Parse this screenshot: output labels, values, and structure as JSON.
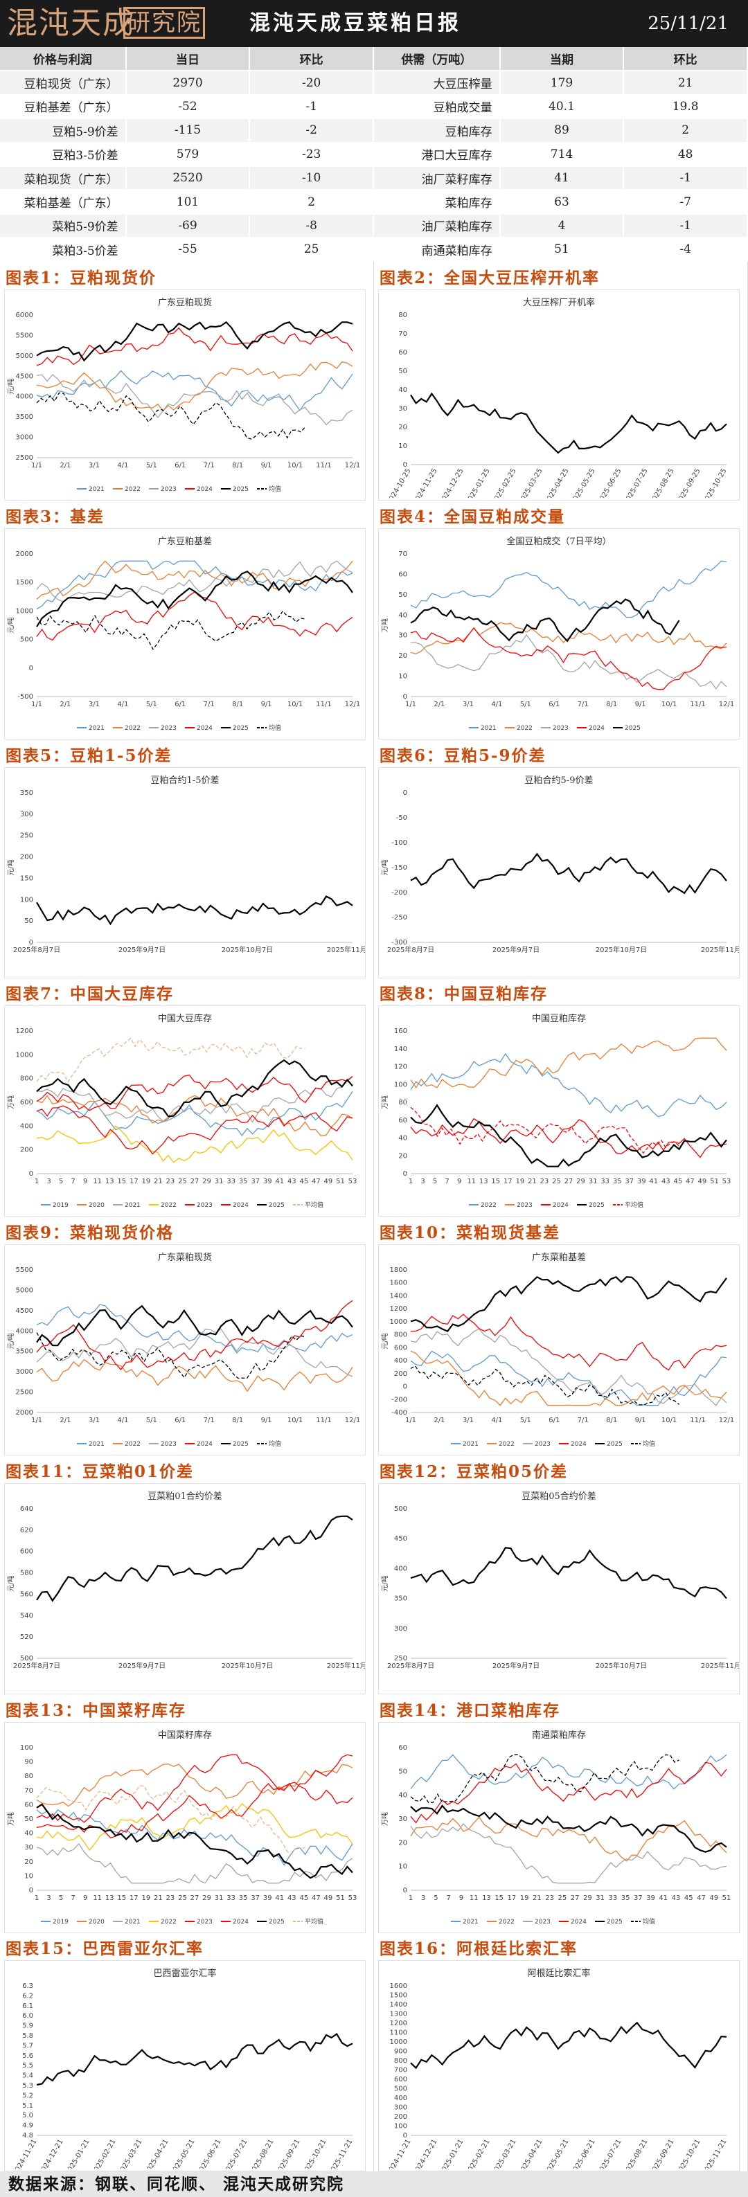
{
  "header": {
    "logo_text": "混沌天成",
    "logo_box_text": "研究院",
    "title": "混沌天成豆菜粕日报",
    "date": "25/11/21"
  },
  "price_table": {
    "headers": [
      "价格与利润",
      "当日",
      "环比"
    ],
    "rows": [
      [
        "豆粕现货（广东）",
        "2970",
        "-20"
      ],
      [
        "豆粕基差（广东）",
        "-52",
        "-1"
      ],
      [
        "豆粕5-9价差",
        "-115",
        "-2"
      ],
      [
        "豆粕3-5价差",
        "579",
        "-23"
      ],
      [
        "菜粕现货（广东）",
        "2520",
        "-10"
      ],
      [
        "菜粕基差（广东）",
        "101",
        "2"
      ],
      [
        "菜粕5-9价差",
        "-69",
        "-8"
      ],
      [
        "菜粕3-5价差",
        "-55",
        "25"
      ]
    ]
  },
  "supply_table": {
    "headers": [
      "供需（万吨）",
      "当期",
      "环比"
    ],
    "rows": [
      [
        "大豆压榨量",
        "179",
        "21"
      ],
      [
        "豆粕成交量",
        "40.1",
        "19.8"
      ],
      [
        "豆粕库存",
        "89",
        "2"
      ],
      [
        "港口大豆库存",
        "714",
        "48"
      ],
      [
        "油厂菜籽库存",
        "41",
        "-1"
      ],
      [
        "菜粕库存",
        "63",
        "-7"
      ],
      [
        "油厂菜粕库存",
        "4",
        "-1"
      ],
      [
        "南通菜粕库存",
        "51",
        "-4"
      ]
    ]
  },
  "charts": [
    {
      "label": "图表1：豆粕现货价",
      "title": "广东豆粕现货",
      "ylabel": "元/吨",
      "y_ticks": [
        "2500",
        "3000",
        "3500",
        "4000",
        "4500",
        "5000",
        "5500",
        "6000"
      ],
      "x_ticks": [
        "1/1",
        "2/1",
        "3/1",
        "4/1",
        "5/1",
        "6/1",
        "7/1",
        "8/1",
        "9/1",
        "10/1",
        "11/1",
        "12/1"
      ],
      "legend": [
        "2021",
        "2022",
        "2023",
        "2024",
        "2025",
        "均值"
      ]
    },
    {
      "label": "图表2：全国大豆压榨开机率",
      "title": "大豆压榨厂开机率",
      "ylabel": "",
      "y_ticks": [
        "0",
        "10",
        "20",
        "30",
        "40",
        "50",
        "60",
        "70",
        "80"
      ],
      "x_ticks": [
        "2024-10-25",
        "2024-11-25",
        "2024-12-25",
        "2025-01-25",
        "2025-02-25",
        "2025-03-25",
        "2025-04-25",
        "2025-05-25",
        "2025-06-25",
        "2025-07-25",
        "2025-08-25",
        "2025-09-25",
        "2025-10-25"
      ],
      "legend": []
    },
    {
      "label": "图表3：基差",
      "title": "广东豆粕基差",
      "ylabel": "元/吨",
      "y_ticks": [
        "-500",
        "0",
        "500",
        "1000",
        "1500",
        "2000"
      ],
      "x_ticks": [
        "1/1",
        "2/1",
        "3/1",
        "4/1",
        "5/1",
        "6/1",
        "7/1",
        "8/1",
        "9/1",
        "10/1",
        "11/1",
        "12/1"
      ],
      "legend": [
        "2021",
        "2022",
        "2023",
        "2024",
        "2025",
        "均值"
      ]
    },
    {
      "label": "图表4：全国豆粕成交量",
      "title": "全国豆粕成交（7日平均）",
      "ylabel": "万吨",
      "y_ticks": [
        "0",
        "10",
        "20",
        "30",
        "40",
        "50",
        "60",
        "70"
      ],
      "x_ticks": [
        "1/1",
        "2/1",
        "3/1",
        "4/1",
        "5/1",
        "6/1",
        "7/1",
        "8/1",
        "9/1",
        "10/1",
        "11/1",
        "12/1"
      ],
      "legend": [
        "2021",
        "2022",
        "2023",
        "2024",
        "2025"
      ]
    },
    {
      "label": "图表5：豆粕1-5价差",
      "title": "豆粕合约1-5价差",
      "ylabel": "元/吨",
      "y_ticks": [
        "0",
        "50",
        "100",
        "150",
        "200",
        "250",
        "300",
        "350"
      ],
      "x_ticks": [
        "2025年8月7日",
        "2025年9月7日",
        "2025年10月7日",
        "2025年11月7日"
      ],
      "legend": []
    },
    {
      "label": "图表6：豆粕5-9价差",
      "title": "豆粕合约5-9价差",
      "ylabel": "元/吨",
      "y_ticks": [
        "-300",
        "-250",
        "-200",
        "-150",
        "-100",
        "-50",
        "0"
      ],
      "x_ticks": [
        "2025年8月7日",
        "2025年9月7日",
        "2025年10月7日",
        "2025年11月7日"
      ],
      "legend": []
    },
    {
      "label": "图表7：中国大豆库存",
      "title": "中国大豆库存",
      "ylabel": "万吨",
      "y_ticks": [
        "0",
        "200",
        "400",
        "600",
        "800",
        "1000",
        "1200"
      ],
      "x_ticks": [
        "1",
        "3",
        "5",
        "7",
        "9",
        "11",
        "13",
        "15",
        "17",
        "19",
        "21",
        "23",
        "25",
        "27",
        "29",
        "31",
        "33",
        "35",
        "37",
        "39",
        "41",
        "43",
        "45",
        "47",
        "49",
        "51",
        "53"
      ],
      "legend": [
        "2019",
        "2020",
        "2021",
        "2022",
        "2023",
        "2024",
        "2025",
        "平均值"
      ]
    },
    {
      "label": "图表8：中国豆粕库存",
      "title": "中国豆粕库存",
      "ylabel": "万吨",
      "y_ticks": [
        "0",
        "20",
        "40",
        "60",
        "80",
        "100",
        "120",
        "140",
        "160"
      ],
      "x_ticks": [
        "1",
        "3",
        "5",
        "7",
        "9",
        "11",
        "13",
        "15",
        "17",
        "19",
        "21",
        "23",
        "25",
        "27",
        "29",
        "31",
        "33",
        "35",
        "37",
        "39",
        "41",
        "43",
        "45",
        "47",
        "49",
        "51",
        "53"
      ],
      "legend": [
        "2022",
        "2023",
        "2024",
        "2025",
        "平均值"
      ]
    },
    {
      "label": "图表9：菜粕现货价格",
      "title": "广东菜粕现货",
      "ylabel": "元/吨",
      "y_ticks": [
        "2000",
        "2500",
        "3000",
        "3500",
        "4000",
        "4500",
        "5000",
        "5500"
      ],
      "x_ticks": [
        "1/1",
        "2/1",
        "3/1",
        "4/1",
        "5/1",
        "6/1",
        "7/1",
        "8/1",
        "9/1",
        "10/1",
        "11/1",
        "12/1"
      ],
      "legend": [
        "2021",
        "2022",
        "2023",
        "2024",
        "2025",
        "均值"
      ]
    },
    {
      "label": "图表10：菜粕现货基差",
      "title": "广东菜粕基差",
      "ylabel": "元/吨",
      "y_ticks": [
        "-400",
        "-200",
        "0",
        "200",
        "400",
        "600",
        "800",
        "1000",
        "1200",
        "1400",
        "1600",
        "1800"
      ],
      "x_ticks": [
        "1/1",
        "2/1",
        "3/1",
        "4/1",
        "5/1",
        "6/1",
        "7/1",
        "8/1",
        "9/1",
        "10/1",
        "11/1",
        "12/1"
      ],
      "legend": [
        "2021",
        "2022",
        "2023",
        "2024",
        "2025",
        "均值"
      ]
    },
    {
      "label": "图表11：豆菜粕01价差",
      "title": "豆菜粕01合约价差",
      "ylabel": "元/吨",
      "y_ticks": [
        "500",
        "520",
        "540",
        "560",
        "580",
        "600",
        "620",
        "640"
      ],
      "x_ticks": [
        "2025年8月7日",
        "2025年9月7日",
        "2025年10月7日",
        "2025年11月7日"
      ],
      "legend": []
    },
    {
      "label": "图表12：豆菜粕05价差",
      "title": "豆菜粕05合约价差",
      "ylabel": "元/吨",
      "y_ticks": [
        "250",
        "300",
        "350",
        "400",
        "450",
        "500"
      ],
      "x_ticks": [
        "2025年8月7日",
        "2025年9月7日",
        "2025年10月7日",
        "2025年11月7日"
      ],
      "legend": []
    },
    {
      "label": "图表13：中国菜籽库存",
      "title": "中国菜籽库存",
      "ylabel": "万吨",
      "y_ticks": [
        "0",
        "10",
        "20",
        "30",
        "40",
        "50",
        "60",
        "70",
        "80",
        "90",
        "100"
      ],
      "x_ticks": [
        "1",
        "3",
        "5",
        "7",
        "9",
        "11",
        "13",
        "15",
        "17",
        "19",
        "21",
        "23",
        "25",
        "27",
        "29",
        "31",
        "33",
        "35",
        "37",
        "39",
        "41",
        "43",
        "45",
        "47",
        "49",
        "51",
        "53"
      ],
      "legend": [
        "2019",
        "2020",
        "2021",
        "2022",
        "2023",
        "2024",
        "2025",
        "平均值"
      ]
    },
    {
      "label": "图表14：港口菜粕库存",
      "title": "南通菜粕库存",
      "ylabel": "万吨",
      "y_ticks": [
        "0",
        "10",
        "20",
        "30",
        "40",
        "50",
        "60"
      ],
      "x_ticks": [
        "1",
        "3",
        "5",
        "7",
        "9",
        "11",
        "13",
        "15",
        "17",
        "19",
        "21",
        "23",
        "25",
        "27",
        "29",
        "31",
        "33",
        "35",
        "37",
        "39",
        "41",
        "43",
        "45",
        "47",
        "49",
        "51"
      ],
      "legend": [
        "2021",
        "2022",
        "2023",
        "2024",
        "2025",
        "均值"
      ]
    },
    {
      "label": "图表15：巴西雷亚尔汇率",
      "title": "巴西雷亚尔汇率",
      "ylabel": "",
      "y_ticks": [
        "4.8",
        "4.9",
        "5.0",
        "5.1",
        "5.2",
        "5.3",
        "5.4",
        "5.5",
        "5.6",
        "5.7",
        "5.8",
        "5.9",
        "6.0",
        "6.1",
        "6.2",
        "6.3"
      ],
      "x_ticks": [
        "2024-11-21",
        "2024-12-21",
        "2025-01-21",
        "2025-02-21",
        "2025-03-21",
        "2025-04-21",
        "2025-05-21",
        "2025-06-21",
        "2025-07-21",
        "2025-08-21",
        "2025-09-21",
        "2025-10-21",
        "2025-11-21"
      ],
      "legend": []
    },
    {
      "label": "图表16：阿根廷比索汇率",
      "title": "阿根廷比索汇率",
      "ylabel": "",
      "y_ticks": [
        "0",
        "100",
        "200",
        "300",
        "400",
        "500",
        "600",
        "700",
        "800",
        "900",
        "1000",
        "1100",
        "1200",
        "1300",
        "1400",
        "1500",
        "1600"
      ],
      "x_ticks": [
        "2024-11-21",
        "2024-12-21",
        "2025-01-21",
        "2025-02-21",
        "2025-03-21",
        "2025-04-21",
        "2025-05-21",
        "2025-06-21",
        "2025-07-21",
        "2025-08-21",
        "2025-09-21",
        "2025-10-21",
        "2025-11-21"
      ],
      "legend": []
    }
  ],
  "footer": {
    "source": "数据来源：钢联、同花顺、 混沌天成研究院"
  },
  "colors": {
    "label": "#c84b0c",
    "header_bg": "#1b1b1b",
    "logo": "#d8a37a",
    "series": [
      "#5b9bd5",
      "#ed7d31",
      "#a5a5a5",
      "#ffc000",
      "#ff0000",
      "#000000",
      "#70ad47",
      "#f4b183"
    ]
  }
}
